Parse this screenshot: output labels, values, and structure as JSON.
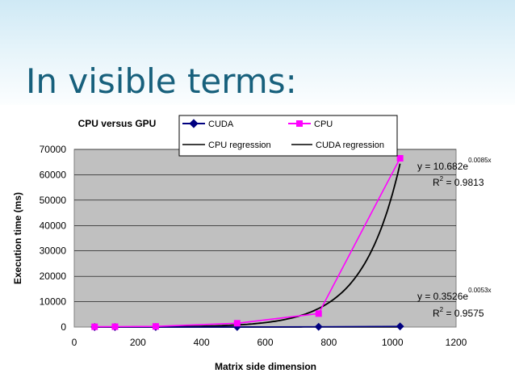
{
  "slide": {
    "title": "In visible terms:"
  },
  "chart_data": {
    "type": "line",
    "title": "CPU versus GPU",
    "xlabel": "Matrix side dimension",
    "ylabel": "Execution time (ms)",
    "xlim": [
      0,
      1200
    ],
    "ylim": [
      0,
      70000
    ],
    "x_ticks": [
      0,
      200,
      400,
      600,
      800,
      1000,
      1200
    ],
    "y_ticks": [
      0,
      10000,
      20000,
      30000,
      40000,
      50000,
      60000,
      70000
    ],
    "grid": true,
    "legend_position": "top",
    "series": [
      {
        "name": "CUDA",
        "color": "#000080",
        "marker": "diamond",
        "points": [
          [
            64,
            1
          ],
          [
            128,
            2
          ],
          [
            256,
            6
          ],
          [
            512,
            40
          ],
          [
            768,
            110
          ],
          [
            1024,
            270
          ]
        ]
      },
      {
        "name": "CPU",
        "color": "#ff00ff",
        "marker": "square",
        "points": [
          [
            64,
            120
          ],
          [
            128,
            150
          ],
          [
            256,
            250
          ],
          [
            512,
            1500
          ],
          [
            768,
            5300
          ],
          [
            1024,
            66500
          ]
        ]
      }
    ],
    "regressions": [
      {
        "name": "CPU regression",
        "color": "#000000",
        "a": 10.682,
        "b": 0.0085,
        "x_range": [
          64,
          1024
        ]
      },
      {
        "name": "CUDA regression",
        "color": "#000000",
        "a": 0.3526,
        "b": 0.0053,
        "x_range": [
          64,
          1024
        ]
      }
    ],
    "annotations": [
      {
        "id": "cpu",
        "eq_prefix": "y = 10.682e",
        "eq_exp": "0.0085x",
        "r_prefix": "R",
        "r_exp": "2",
        "r_suffix": " = 0.9813"
      },
      {
        "id": "cuda",
        "eq_prefix": "y = 0.3526e",
        "eq_exp": "0.0053x",
        "r_prefix": "R",
        "r_exp": "2",
        "r_suffix": " = 0.9575"
      }
    ]
  }
}
